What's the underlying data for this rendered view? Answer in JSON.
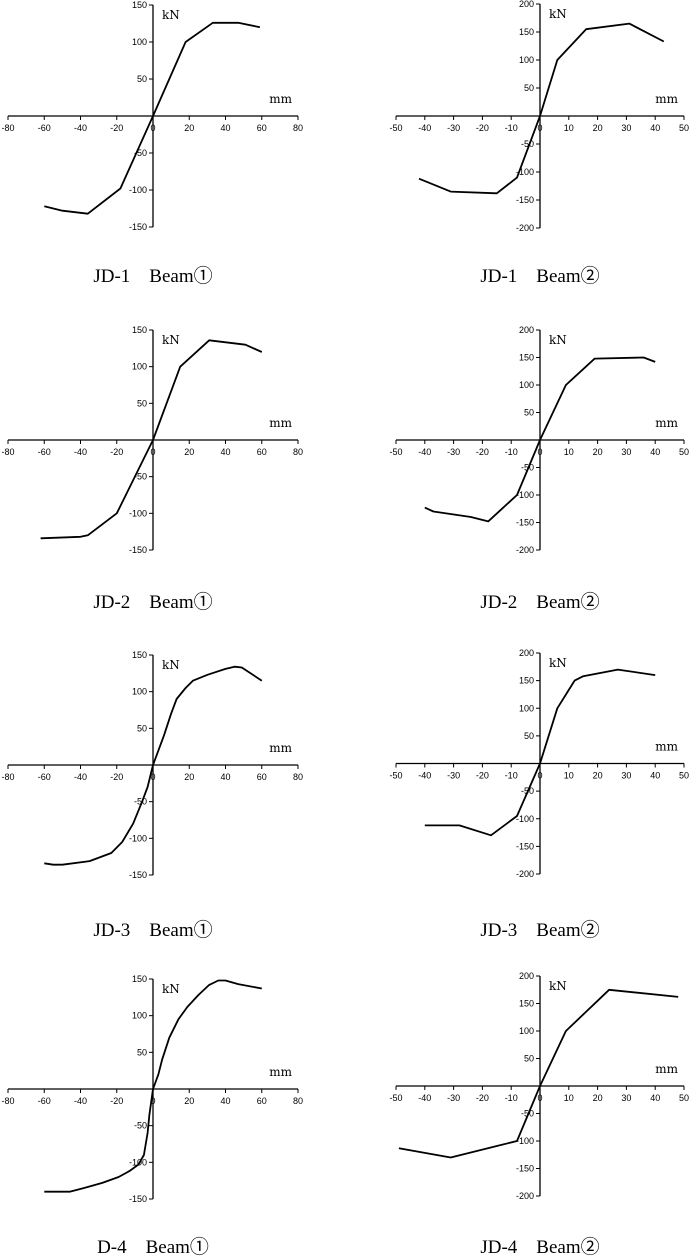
{
  "chart_data": [
    {
      "id": "jd1-b1",
      "type": "line",
      "caption": "JD-1　Beam①",
      "ylabel": "kN",
      "xlabel": "mm",
      "xlim": [
        -80,
        80
      ],
      "ylim": [
        -150,
        150
      ],
      "xticks": [
        -80,
        -60,
        -40,
        -20,
        0,
        20,
        40,
        60,
        80
      ],
      "yticks": [
        150,
        100,
        50,
        -50,
        -100,
        -150
      ],
      "grid": false,
      "series": [
        {
          "points": [
            [
              -60,
              -122
            ],
            [
              -50,
              -128
            ],
            [
              -36,
              -132
            ],
            [
              -18,
              -98
            ],
            [
              0,
              0
            ],
            [
              18,
              100
            ],
            [
              33,
              126
            ],
            [
              47,
              126
            ],
            [
              59,
              120
            ]
          ]
        }
      ]
    },
    {
      "id": "jd1-b2",
      "type": "line",
      "caption": "JD-1　Beam②",
      "ylabel": "kN",
      "xlabel": "mm",
      "xlim": [
        -50,
        50
      ],
      "ylim": [
        -200,
        200
      ],
      "xticks": [
        -50,
        -40,
        -30,
        -20,
        -10,
        0,
        10,
        20,
        30,
        40,
        50
      ],
      "yticks": [
        200,
        150,
        100,
        50,
        -50,
        -100,
        -150,
        -200
      ],
      "grid": false,
      "series": [
        {
          "points": [
            [
              -42,
              -112
            ],
            [
              -31,
              -135
            ],
            [
              -15,
              -138
            ],
            [
              -8,
              -110
            ],
            [
              0,
              0
            ],
            [
              6,
              100
            ],
            [
              16,
              155
            ],
            [
              31,
              165
            ],
            [
              43,
              133
            ]
          ]
        }
      ]
    },
    {
      "id": "jd2-b1",
      "type": "line",
      "caption": "JD-2　Beam①",
      "ylabel": "kN",
      "xlabel": "mm",
      "xlim": [
        -80,
        80
      ],
      "ylim": [
        -150,
        150
      ],
      "xticks": [
        -80,
        -60,
        -40,
        -20,
        0,
        20,
        40,
        60,
        80
      ],
      "yticks": [
        150,
        100,
        50,
        -50,
        -100,
        -150
      ],
      "grid": false,
      "series": [
        {
          "points": [
            [
              -62,
              -134
            ],
            [
              -40,
              -132
            ],
            [
              -36,
              -130
            ],
            [
              -20,
              -100
            ],
            [
              0,
              0
            ],
            [
              15,
              100
            ],
            [
              31,
              136
            ],
            [
              51,
              130
            ],
            [
              60,
              120
            ]
          ]
        }
      ]
    },
    {
      "id": "jd2-b2",
      "type": "line",
      "caption": "JD-2　Beam②",
      "ylabel": "kN",
      "xlabel": "mm",
      "xlim": [
        -50,
        50
      ],
      "ylim": [
        -200,
        200
      ],
      "xticks": [
        -50,
        -40,
        -30,
        -20,
        -10,
        0,
        10,
        20,
        30,
        40,
        50
      ],
      "yticks": [
        200,
        150,
        100,
        50,
        -50,
        -100,
        -150,
        -200
      ],
      "grid": false,
      "series": [
        {
          "points": [
            [
              -40,
              -123
            ],
            [
              -37,
              -130
            ],
            [
              -24,
              -140
            ],
            [
              -18,
              -148
            ],
            [
              -8,
              -100
            ],
            [
              0,
              0
            ],
            [
              9,
              100
            ],
            [
              19,
              148
            ],
            [
              36,
              150
            ],
            [
              40,
              142
            ]
          ]
        }
      ]
    },
    {
      "id": "jd3-b1",
      "type": "line",
      "caption": "JD-3　Beam①",
      "ylabel": "kN",
      "xlabel": "mm",
      "xlim": [
        -80,
        80
      ],
      "ylim": [
        -150,
        150
      ],
      "xticks": [
        -80,
        -60,
        -40,
        -20,
        0,
        20,
        40,
        60,
        80
      ],
      "yticks": [
        150,
        100,
        50,
        -50,
        -100,
        -150
      ],
      "grid": false,
      "series": [
        {
          "points": [
            [
              -60,
              -134
            ],
            [
              -55,
              -136
            ],
            [
              -50,
              -136
            ],
            [
              -35,
              -131
            ],
            [
              -23,
              -120
            ],
            [
              -17,
              -105
            ],
            [
              -11,
              -80
            ],
            [
              -6,
              -50
            ],
            [
              -3,
              -30
            ],
            [
              0,
              0
            ],
            [
              6,
              40
            ],
            [
              10,
              70
            ],
            [
              13,
              90
            ],
            [
              18,
              105
            ],
            [
              22,
              115
            ],
            [
              30,
              123
            ],
            [
              40,
              131
            ],
            [
              45,
              134
            ],
            [
              49,
              133
            ],
            [
              60,
              115
            ]
          ]
        }
      ]
    },
    {
      "id": "jd3-b2",
      "type": "line",
      "caption": "JD-3　Beam②",
      "ylabel": "kN",
      "xlabel": "mm",
      "xlim": [
        -50,
        50
      ],
      "ylim": [
        -200,
        200
      ],
      "xticks": [
        -50,
        -40,
        -30,
        -20,
        -10,
        0,
        10,
        20,
        30,
        40,
        50
      ],
      "yticks": [
        200,
        150,
        100,
        50,
        -50,
        -100,
        -150,
        -200
      ],
      "grid": false,
      "series": [
        {
          "points": [
            [
              -40,
              -112
            ],
            [
              -28,
              -112
            ],
            [
              -17,
              -130
            ],
            [
              -8,
              -95
            ],
            [
              0,
              0
            ],
            [
              6,
              100
            ],
            [
              12,
              150
            ],
            [
              15,
              158
            ],
            [
              27,
              170
            ],
            [
              40,
              160
            ]
          ]
        }
      ]
    },
    {
      "id": "jd4-b1",
      "type": "line",
      "caption": "D-4　Beam①",
      "ylabel": "kN",
      "xlabel": "mm",
      "xlim": [
        -80,
        80
      ],
      "ylim": [
        -150,
        150
      ],
      "xticks": [
        -80,
        -60,
        -40,
        -20,
        0,
        20,
        40,
        60,
        80
      ],
      "yticks": [
        150,
        100,
        50,
        -50,
        -100,
        -150
      ],
      "grid": false,
      "series": [
        {
          "points": [
            [
              -60,
              -140
            ],
            [
              -46,
              -140
            ],
            [
              -38,
              -135
            ],
            [
              -28,
              -128
            ],
            [
              -19,
              -120
            ],
            [
              -13,
              -112
            ],
            [
              -8,
              -103
            ],
            [
              -5,
              -90
            ],
            [
              -3,
              -60
            ],
            [
              -2,
              -35
            ],
            [
              0,
              0
            ],
            [
              3,
              20
            ],
            [
              5,
              40
            ],
            [
              9,
              70
            ],
            [
              14,
              95
            ],
            [
              19,
              112
            ],
            [
              25,
              128
            ],
            [
              31,
              142
            ],
            [
              36,
              148
            ],
            [
              40,
              148
            ],
            [
              47,
              143
            ],
            [
              60,
              137
            ]
          ]
        }
      ]
    },
    {
      "id": "jd4-b2",
      "type": "line",
      "caption": "JD-4　Beam②",
      "ylabel": "kN",
      "xlabel": "mm",
      "xlim": [
        -50,
        50
      ],
      "ylim": [
        -200,
        200
      ],
      "xticks": [
        -50,
        -40,
        -30,
        -20,
        -10,
        0,
        10,
        20,
        30,
        40,
        50
      ],
      "yticks": [
        200,
        150,
        100,
        50,
        -50,
        -100,
        -150,
        -200
      ],
      "grid": false,
      "series": [
        {
          "points": [
            [
              -49,
              -113
            ],
            [
              -31,
              -130
            ],
            [
              -8,
              -100
            ],
            [
              0,
              0
            ],
            [
              9,
              100
            ],
            [
              24,
              175
            ],
            [
              48,
              162
            ]
          ]
        }
      ]
    }
  ]
}
